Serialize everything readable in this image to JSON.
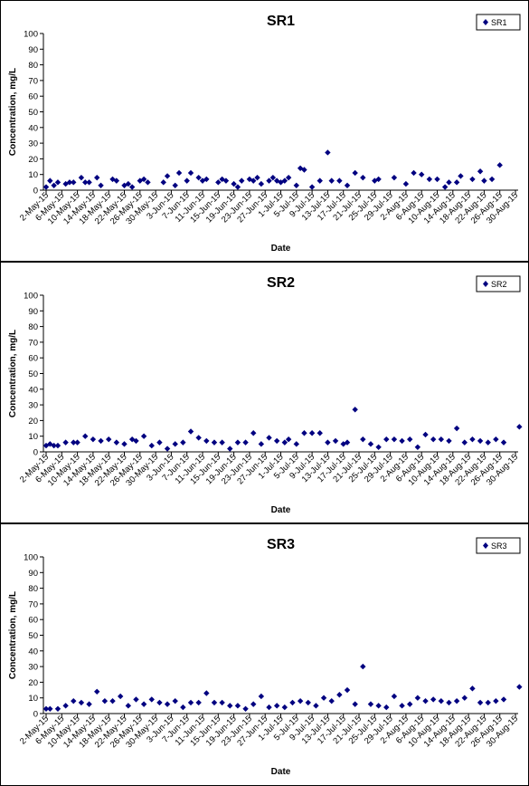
{
  "marker_color": "#000080",
  "chart_data": [
    {
      "type": "scatter",
      "title": "SR1",
      "xlabel": "Date",
      "ylabel": "Concentration, mg/L",
      "ylim": [
        0,
        100
      ],
      "yticks": [
        0,
        10,
        20,
        30,
        40,
        50,
        60,
        70,
        80,
        90,
        100
      ],
      "grid": false,
      "legend": "top-right",
      "x_tick_labels": [
        "2-May-15",
        "6-May-15",
        "10-May-15",
        "14-May-15",
        "18-May-15",
        "22-May-15",
        "26-May-15",
        "30-May-15",
        "3-Jun-15",
        "7-Jun-15",
        "11-Jun-15",
        "15-Jun-15",
        "19-Jun-15",
        "23-Jun-15",
        "27-Jun-15",
        "1-Jul-15",
        "5-Jul-15",
        "9-Jul-15",
        "13-Jul-15",
        "17-Jul-15",
        "21-Jul-15",
        "25-Jul-15",
        "29-Jul-15",
        "2-Aug-15",
        "6-Aug-15",
        "10-Aug-15",
        "14-Aug-15",
        "18-Aug-15",
        "22-Aug-15",
        "26-Aug-15",
        "30-Aug-15"
      ],
      "series": [
        {
          "name": "SR1",
          "x": [
            "2-May-15",
            "3-May-15",
            "4-May-15",
            "5-May-15",
            "7-May-15",
            "8-May-15",
            "9-May-15",
            "11-May-15",
            "12-May-15",
            "13-May-15",
            "15-May-15",
            "16-May-15",
            "19-May-15",
            "20-May-15",
            "22-May-15",
            "23-May-15",
            "24-May-15",
            "26-May-15",
            "27-May-15",
            "28-May-15",
            "1-Jun-15",
            "2-Jun-15",
            "4-Jun-15",
            "5-Jun-15",
            "7-Jun-15",
            "8-Jun-15",
            "10-Jun-15",
            "11-Jun-15",
            "12-Jun-15",
            "15-Jun-15",
            "16-Jun-15",
            "17-Jun-15",
            "19-Jun-15",
            "20-Jun-15",
            "21-Jun-15",
            "23-Jun-15",
            "24-Jun-15",
            "25-Jun-15",
            "26-Jun-15",
            "28-Jun-15",
            "29-Jun-15",
            "30-Jun-15",
            "1-Jul-15",
            "2-Jul-15",
            "3-Jul-15",
            "5-Jul-15",
            "6-Jul-15",
            "7-Jul-15",
            "9-Jul-15",
            "11-Jul-15",
            "13-Jul-15",
            "14-Jul-15",
            "16-Jul-15",
            "18-Jul-15",
            "20-Jul-15",
            "22-Jul-15",
            "25-Jul-15",
            "26-Jul-15",
            "30-Jul-15",
            "2-Aug-15",
            "4-Aug-15",
            "6-Aug-15",
            "8-Aug-15",
            "10-Aug-15",
            "12-Aug-15",
            "13-Aug-15",
            "15-Aug-15",
            "16-Aug-15",
            "19-Aug-15",
            "21-Aug-15",
            "22-Aug-15",
            "24-Aug-15",
            "26-Aug-15"
          ],
          "y": [
            2,
            6,
            3,
            5,
            4,
            5,
            5,
            8,
            5,
            5,
            8,
            3,
            7,
            6,
            3,
            4,
            2,
            6,
            7,
            5,
            5,
            9,
            3,
            11,
            6,
            11,
            8,
            6,
            7,
            5,
            7,
            6,
            4,
            2,
            6,
            7,
            6,
            8,
            4,
            6,
            8,
            6,
            5,
            6,
            8,
            3,
            14,
            13,
            2,
            6,
            24,
            6,
            6,
            3,
            11,
            8,
            6,
            7,
            8,
            4,
            11,
            10,
            7,
            7,
            2,
            5,
            5,
            9,
            7,
            12,
            6,
            7,
            16
          ]
        }
      ]
    },
    {
      "type": "scatter",
      "title": "SR2",
      "xlabel": "Date",
      "ylabel": "Concentration, mg/L",
      "ylim": [
        0,
        100
      ],
      "yticks": [
        0,
        10,
        20,
        30,
        40,
        50,
        60,
        70,
        80,
        90,
        100
      ],
      "grid": false,
      "legend": "top-right",
      "x_tick_labels": [
        "2-May-15",
        "6-May-15",
        "10-May-15",
        "14-May-15",
        "18-May-15",
        "22-May-15",
        "26-May-15",
        "30-May-15",
        "3-Jun-15",
        "7-Jun-15",
        "11-Jun-15",
        "15-Jun-15",
        "19-Jun-15",
        "23-Jun-15",
        "27-Jun-15",
        "1-Jul-15",
        "5-Jul-15",
        "9-Jul-15",
        "13-Jul-15",
        "17-Jul-15",
        "21-Jul-15",
        "25-Jul-15",
        "29-Jul-15",
        "2-Aug-15",
        "6-Aug-15",
        "10-Aug-15",
        "14-Aug-15",
        "18-Aug-15",
        "22-Aug-15",
        "26-Aug-15",
        "30-Aug-15"
      ],
      "series": [
        {
          "name": "SR2",
          "x": [
            "2-May-15",
            "3-May-15",
            "4-May-15",
            "5-May-15",
            "7-May-15",
            "9-May-15",
            "10-May-15",
            "12-May-15",
            "14-May-15",
            "16-May-15",
            "18-May-15",
            "20-May-15",
            "22-May-15",
            "24-May-15",
            "25-May-15",
            "27-May-15",
            "29-May-15",
            "31-May-15",
            "2-Jun-15",
            "4-Jun-15",
            "6-Jun-15",
            "8-Jun-15",
            "10-Jun-15",
            "12-Jun-15",
            "14-Jun-15",
            "16-Jun-15",
            "18-Jun-15",
            "20-Jun-15",
            "22-Jun-15",
            "24-Jun-15",
            "26-Jun-15",
            "28-Jun-15",
            "30-Jun-15",
            "2-Jul-15",
            "3-Jul-15",
            "5-Jul-15",
            "7-Jul-15",
            "9-Jul-15",
            "11-Jul-15",
            "13-Jul-15",
            "15-Jul-15",
            "17-Jul-15",
            "18-Jul-15",
            "20-Jul-15",
            "22-Jul-15",
            "24-Jul-15",
            "26-Jul-15",
            "28-Jul-15",
            "30-Jul-15",
            "1-Aug-15",
            "3-Aug-15",
            "5-Aug-15",
            "7-Aug-15",
            "9-Aug-15",
            "11-Aug-15",
            "13-Aug-15",
            "15-Aug-15",
            "17-Aug-15",
            "19-Aug-15",
            "21-Aug-15",
            "23-Aug-15",
            "25-Aug-15",
            "27-Aug-15",
            "31-Aug-15"
          ],
          "y": [
            4,
            5,
            4,
            4,
            6,
            6,
            6,
            10,
            8,
            7,
            8,
            6,
            5,
            8,
            7,
            10,
            4,
            6,
            2,
            5,
            6,
            13,
            9,
            7,
            6,
            6,
            2,
            6,
            6,
            12,
            5,
            9,
            7,
            6,
            8,
            5,
            12,
            12,
            12,
            6,
            7,
            5,
            6,
            27,
            8,
            5,
            3,
            8,
            8,
            7,
            8,
            3,
            11,
            8,
            8,
            7,
            15,
            6,
            8,
            7,
            6,
            8,
            6,
            16
          ]
        }
      ]
    },
    {
      "type": "scatter",
      "title": "SR3",
      "xlabel": "Date",
      "ylabel": "Concentration, mg/L",
      "ylim": [
        0,
        100
      ],
      "yticks": [
        0,
        10,
        20,
        30,
        40,
        50,
        60,
        70,
        80,
        90,
        100
      ],
      "grid": false,
      "legend": "top-right",
      "x_tick_labels": [
        "2-May-15",
        "6-May-15",
        "10-May-15",
        "14-May-15",
        "18-May-15",
        "22-May-15",
        "26-May-15",
        "30-May-15",
        "3-Jun-15",
        "7-Jun-15",
        "11-Jun-15",
        "15-Jun-15",
        "19-Jun-15",
        "23-Jun-15",
        "27-Jun-15",
        "1-Jul-15",
        "5-Jul-15",
        "9-Jul-15",
        "13-Jul-15",
        "17-Jul-15",
        "21-Jul-15",
        "25-Jul-15",
        "29-Jul-15",
        "2-Aug-15",
        "6-Aug-15",
        "10-Aug-15",
        "14-Aug-15",
        "18-Aug-15",
        "22-Aug-15",
        "26-Aug-15",
        "30-Aug-15"
      ],
      "series": [
        {
          "name": "SR3",
          "x": [
            "2-May-15",
            "3-May-15",
            "5-May-15",
            "7-May-15",
            "9-May-15",
            "11-May-15",
            "13-May-15",
            "15-May-15",
            "17-May-15",
            "19-May-15",
            "21-May-15",
            "23-May-15",
            "25-May-15",
            "27-May-15",
            "29-May-15",
            "31-May-15",
            "2-Jun-15",
            "4-Jun-15",
            "6-Jun-15",
            "8-Jun-15",
            "10-Jun-15",
            "12-Jun-15",
            "14-Jun-15",
            "16-Jun-15",
            "18-Jun-15",
            "20-Jun-15",
            "22-Jun-15",
            "24-Jun-15",
            "26-Jun-15",
            "28-Jun-15",
            "30-Jun-15",
            "2-Jul-15",
            "4-Jul-15",
            "6-Jul-15",
            "8-Jul-15",
            "10-Jul-15",
            "12-Jul-15",
            "14-Jul-15",
            "16-Jul-15",
            "18-Jul-15",
            "20-Jul-15",
            "22-Jul-15",
            "24-Jul-15",
            "26-Jul-15",
            "28-Jul-15",
            "30-Jul-15",
            "1-Aug-15",
            "3-Aug-15",
            "5-Aug-15",
            "7-Aug-15",
            "9-Aug-15",
            "11-Aug-15",
            "13-Aug-15",
            "15-Aug-15",
            "17-Aug-15",
            "19-Aug-15",
            "21-Aug-15",
            "23-Aug-15",
            "25-Aug-15",
            "27-Aug-15",
            "31-Aug-15"
          ],
          "y": [
            3,
            3,
            3,
            5,
            8,
            7,
            6,
            14,
            8,
            8,
            11,
            5,
            9,
            6,
            9,
            7,
            6,
            8,
            4,
            7,
            7,
            13,
            7,
            7,
            5,
            5,
            3,
            6,
            11,
            4,
            5,
            4,
            7,
            8,
            7,
            5,
            10,
            8,
            12,
            15,
            6,
            30,
            6,
            5,
            4,
            11,
            5,
            6,
            10,
            8,
            9,
            8,
            7,
            8,
            10,
            16,
            7,
            7,
            8,
            9,
            17
          ]
        }
      ]
    }
  ]
}
